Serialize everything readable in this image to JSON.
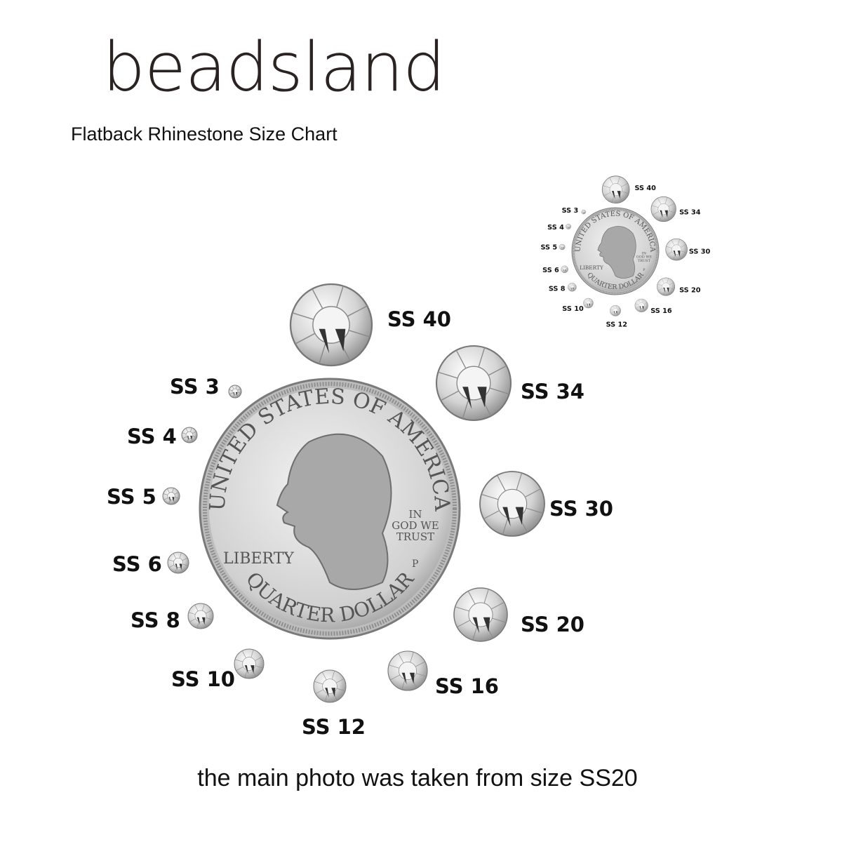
{
  "brand": {
    "logo": "beadsland"
  },
  "title": "Flatback Rhinestone Size Chart",
  "caption": "the main photo was taken from size SS20",
  "coin": {
    "top_text": "UNITED STATES OF AMERICA",
    "bottom_text": "QUARTER DOLLAR",
    "liberty": "LIBERTY",
    "motto": [
      "IN",
      "GOD WE",
      "TRUST"
    ],
    "mint": "P"
  },
  "sizes": [
    {
      "label": "SS 40"
    },
    {
      "label": "SS 34"
    },
    {
      "label": "SS 30"
    },
    {
      "label": "SS 20"
    },
    {
      "label": "SS 16"
    },
    {
      "label": "SS 12"
    },
    {
      "label": "SS 10"
    },
    {
      "label": "SS 8"
    },
    {
      "label": "SS 6"
    },
    {
      "label": "SS 5"
    },
    {
      "label": "SS 4"
    },
    {
      "label": "SS 3"
    }
  ],
  "colors": {
    "stone": "#d8d8d8",
    "coin": "#c9c9c9",
    "text": "#111111"
  }
}
